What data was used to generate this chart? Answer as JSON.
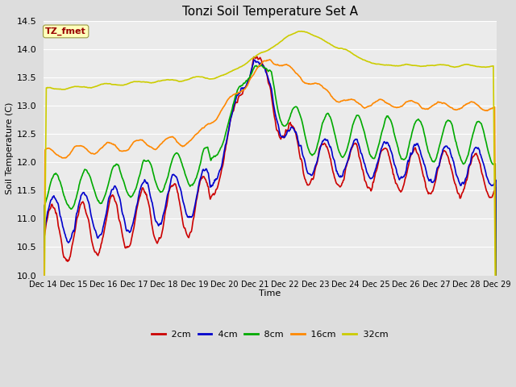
{
  "title": "Tonzi Soil Temperature Set A",
  "xlabel": "Time",
  "ylabel": "Soil Temperature (C)",
  "ylim": [
    10.0,
    14.5
  ],
  "annotation_text": "TZ_fmet",
  "annotation_color": "#990000",
  "annotation_bg": "#FFFFBB",
  "annotation_border": "#999944",
  "x_tick_labels": [
    "Dec 14",
    "Dec 15",
    "Dec 16",
    "Dec 17",
    "Dec 18",
    "Dec 19",
    "Dec 20",
    "Dec 21",
    "Dec 22",
    "Dec 23",
    "Dec 24",
    "Dec 25",
    "Dec 26",
    "Dec 27",
    "Dec 28",
    "Dec 29"
  ],
  "colors": {
    "2cm": "#CC0000",
    "4cm": "#0000CC",
    "8cm": "#00AA00",
    "16cm": "#FF8800",
    "32cm": "#CCCC00"
  },
  "legend_labels": [
    "2cm",
    "4cm",
    "8cm",
    "16cm",
    "32cm"
  ],
  "bg_color": "#DDDDDD",
  "plot_bg": "#EBEBEB",
  "grid_color": "#FFFFFF",
  "linewidth": 1.2,
  "figsize": [
    6.4,
    4.8
  ],
  "dpi": 100
}
